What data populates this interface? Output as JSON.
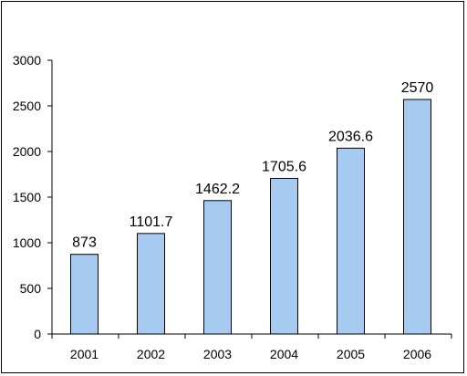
{
  "chart_data": {
    "type": "bar",
    "title": "",
    "xlabel": "",
    "ylabel": "",
    "categories": [
      "2001",
      "2002",
      "2003",
      "2004",
      "2005",
      "2006"
    ],
    "values": [
      873,
      1101.7,
      1462.2,
      1705.6,
      2036.6,
      2570
    ],
    "value_labels": [
      "873",
      "1101.7",
      "1462.2",
      "1705.6",
      "2036.6",
      "2570"
    ],
    "ylim": [
      0,
      3000
    ],
    "yticks": [
      0,
      500,
      1000,
      1500,
      2000,
      2500,
      3000
    ],
    "ytick_labels": [
      "0",
      "500",
      "1000",
      "1500",
      "2000",
      "2500",
      "3000"
    ],
    "grid": false,
    "legend": "none",
    "colors": {
      "bar_fill": "#A6CAF0",
      "bar_stroke": "#000000",
      "axis": "#000000"
    }
  }
}
